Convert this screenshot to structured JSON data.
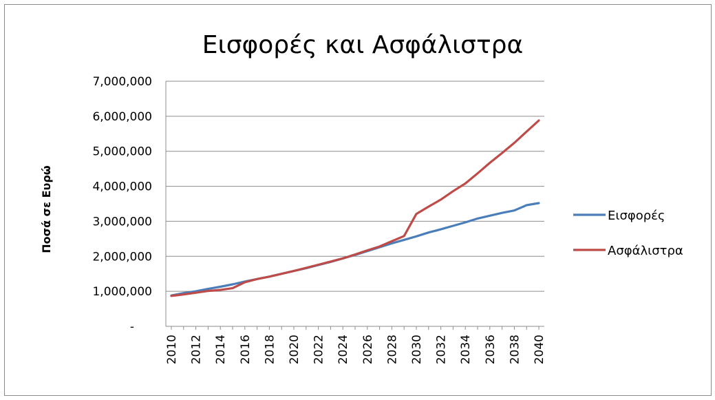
{
  "chart_data": {
    "type": "line",
    "title": "Εισφορές και Ασφάλιστρα",
    "xlabel": "",
    "ylabel": "Ποσά σε Ευρώ",
    "ylim": [
      0,
      7000000
    ],
    "y_ticks": [
      "-",
      "1,000,000",
      "2,000,000",
      "3,000,000",
      "4,000,000",
      "5,000,000",
      "6,000,000",
      "7,000,000"
    ],
    "x_tick_labels": [
      "2010",
      "2012",
      "2014",
      "2016",
      "2018",
      "2020",
      "2022",
      "2024",
      "2026",
      "2028",
      "2030",
      "2032",
      "2034",
      "2036",
      "2038",
      "2040"
    ],
    "x": [
      2010,
      2011,
      2012,
      2013,
      2014,
      2015,
      2016,
      2017,
      2018,
      2019,
      2020,
      2021,
      2022,
      2023,
      2024,
      2025,
      2026,
      2027,
      2028,
      2029,
      2030,
      2031,
      2032,
      2033,
      2034,
      2035,
      2036,
      2037,
      2038,
      2039,
      2040
    ],
    "grid": true,
    "legend_position": "right",
    "series": [
      {
        "name": "Εισφορές",
        "color": "#4a7ebb",
        "values": [
          880000,
          950000,
          1000000,
          1070000,
          1130000,
          1200000,
          1280000,
          1350000,
          1420000,
          1500000,
          1580000,
          1660000,
          1750000,
          1840000,
          1940000,
          2040000,
          2150000,
          2260000,
          2370000,
          2470000,
          2570000,
          2680000,
          2770000,
          2870000,
          2970000,
          3080000,
          3160000,
          3240000,
          3310000,
          3460000,
          3520000
        ]
      },
      {
        "name": "Ασφάλιστρα",
        "color": "#be4b48",
        "values": [
          870000,
          910000,
          960000,
          1010000,
          1040000,
          1090000,
          1260000,
          1350000,
          1420000,
          1500000,
          1580000,
          1670000,
          1760000,
          1850000,
          1940000,
          2050000,
          2170000,
          2280000,
          2430000,
          2580000,
          3210000,
          3420000,
          3620000,
          3860000,
          4080000,
          4370000,
          4670000,
          4950000,
          5240000,
          5560000,
          5880000
        ]
      }
    ]
  }
}
